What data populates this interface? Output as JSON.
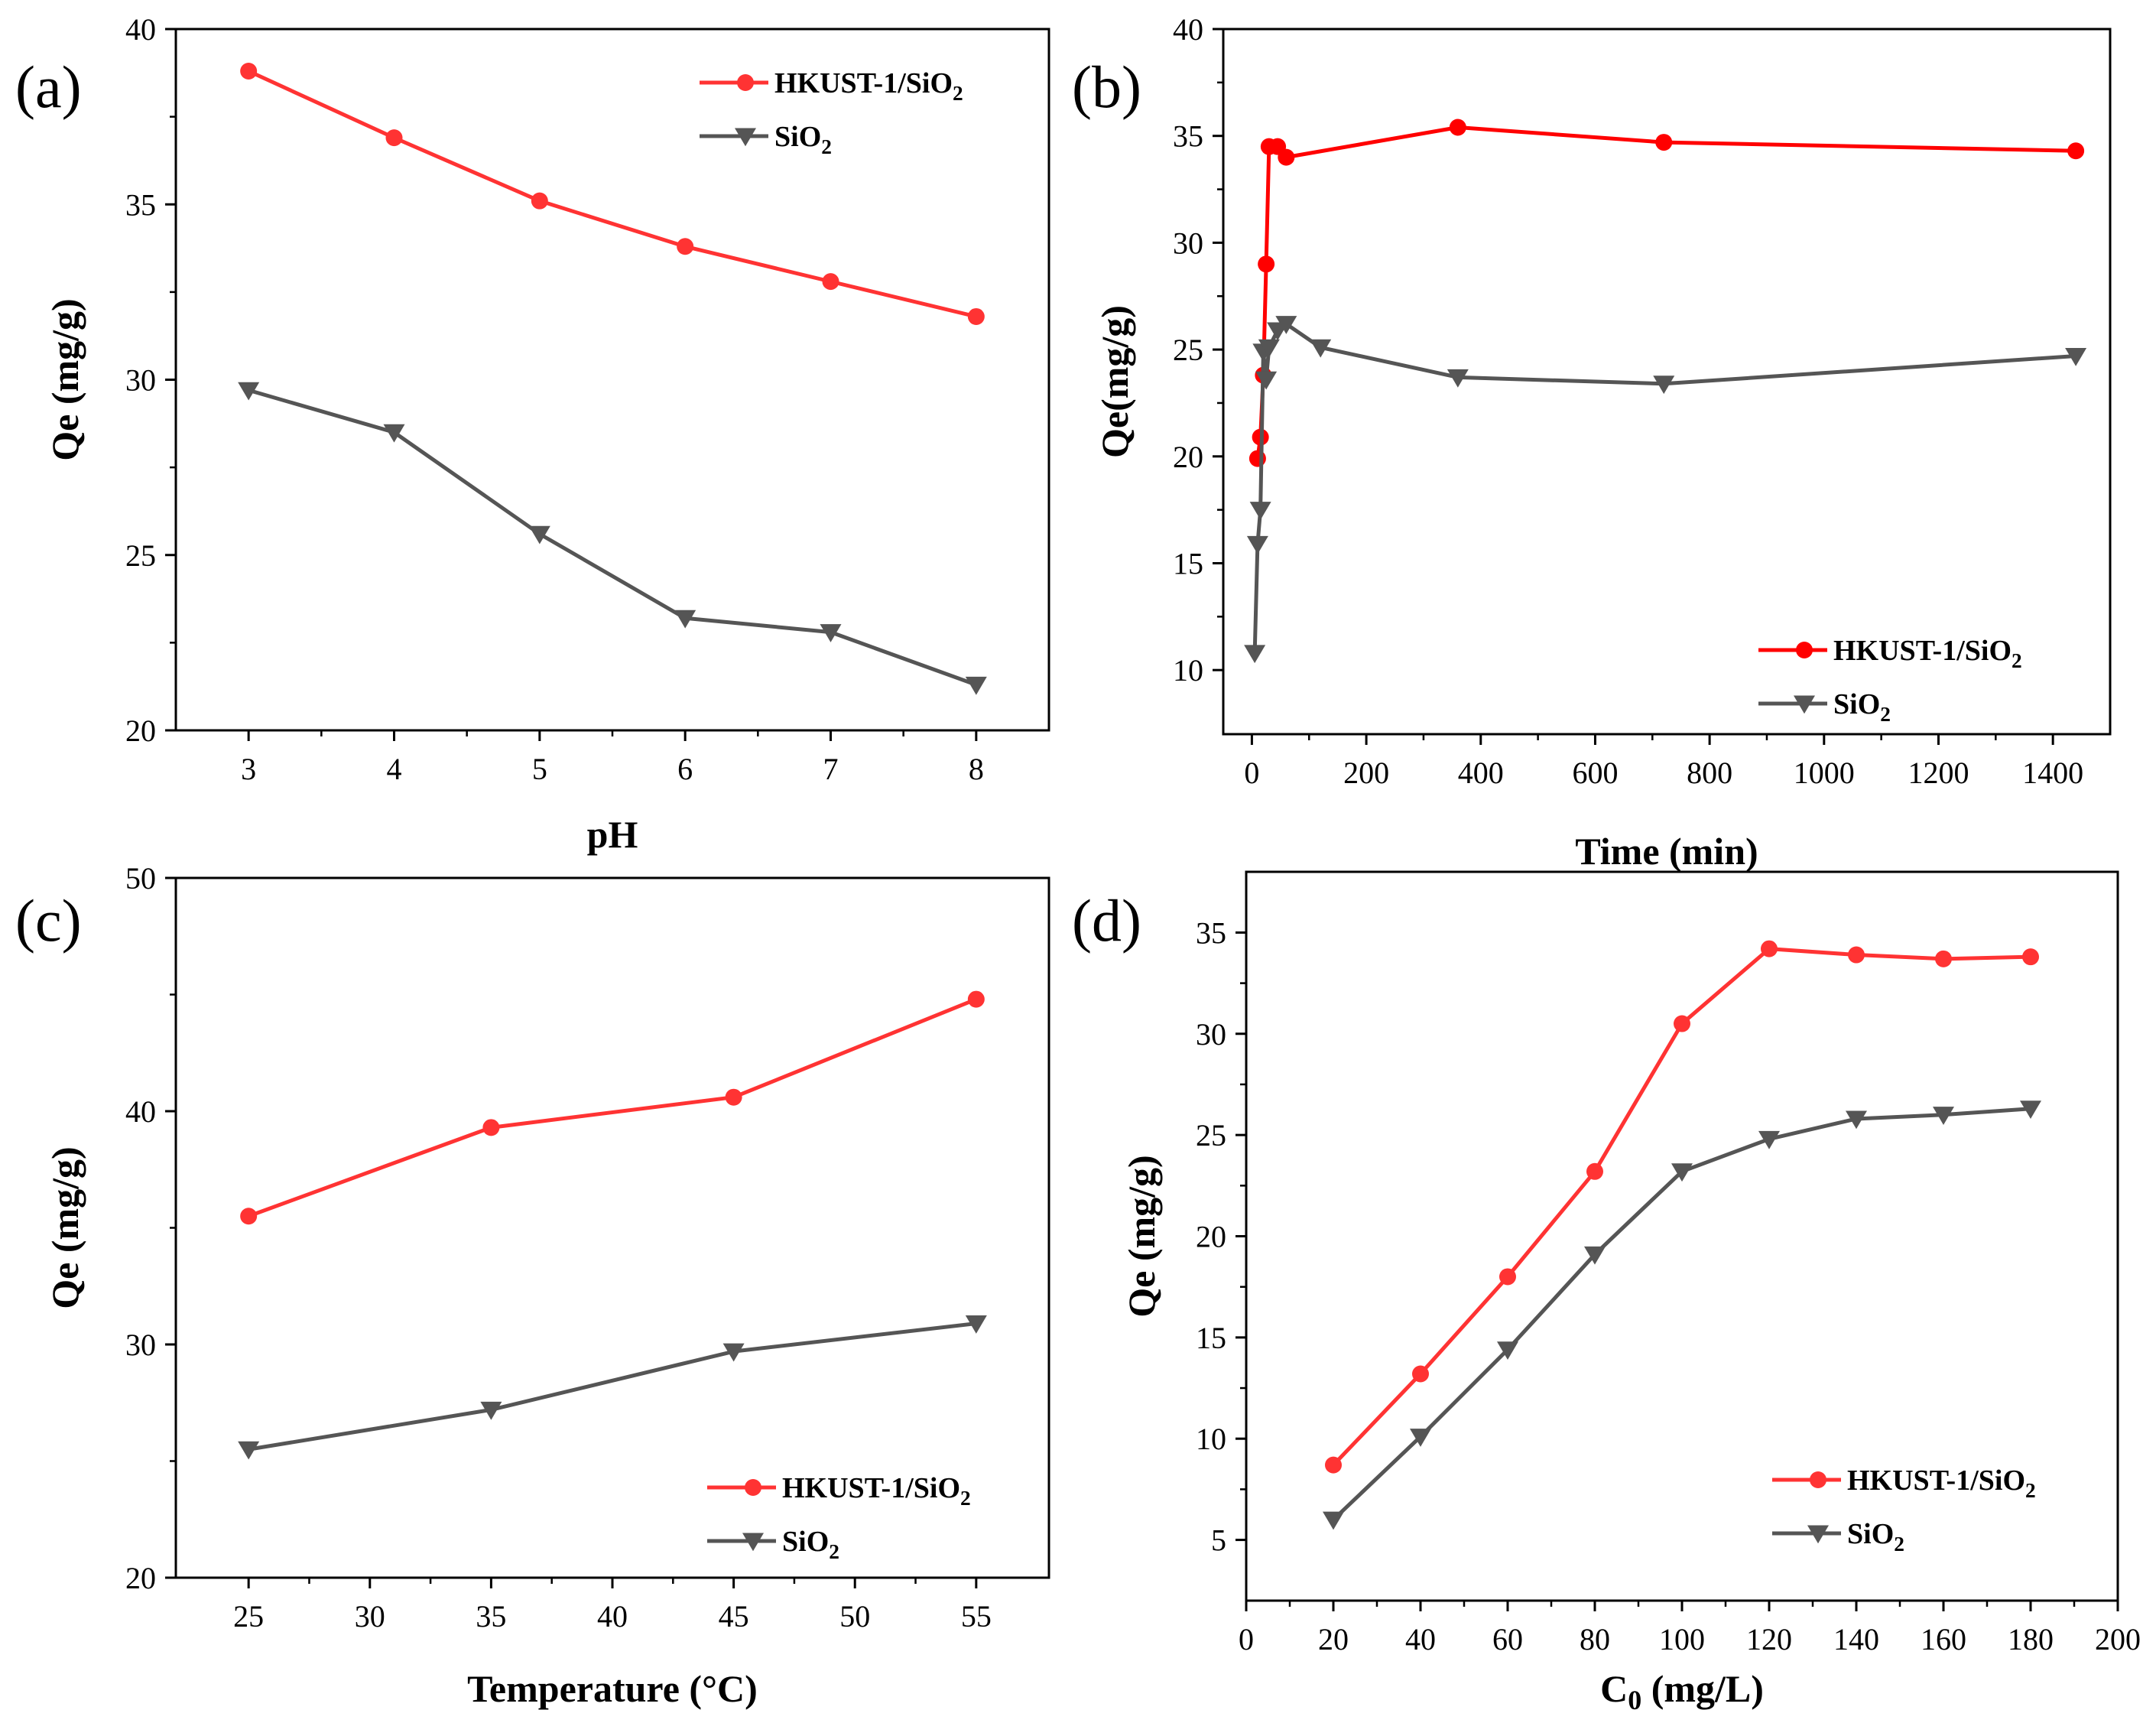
{
  "chart_data": [
    {
      "panel_label": "(a)",
      "type": "line",
      "xlabel": "pH",
      "ylabel": "Qe  (mg/g)",
      "xlim": [
        2.5,
        8.5
      ],
      "ylim": [
        20,
        40
      ],
      "xticks": [
        3,
        4,
        5,
        6,
        7,
        8
      ],
      "yticks": [
        20,
        25,
        30,
        35,
        40
      ],
      "x_tick_labels": [
        "3",
        "4",
        "5",
        "6",
        "7",
        "8"
      ],
      "y_tick_labels": [
        "20",
        "25",
        "30",
        "35",
        "40"
      ],
      "legend_position": "top-right",
      "series": [
        {
          "name": "HKUST-1/SiO2",
          "legend_main": "HKUST-1/SiO",
          "legend_sub": "2",
          "color": "#ff3333",
          "marker": "circle",
          "x": [
            3,
            4,
            5,
            6,
            7,
            8
          ],
          "y": [
            38.8,
            36.9,
            35.1,
            33.8,
            32.8,
            31.8
          ]
        },
        {
          "name": "SiO2",
          "legend_main": "SiO",
          "legend_sub": "2",
          "color": "#555555",
          "marker": "triangle-down",
          "x": [
            3,
            4,
            5,
            6,
            7,
            8
          ],
          "y": [
            29.7,
            28.5,
            25.6,
            23.2,
            22.8,
            21.3
          ]
        }
      ]
    },
    {
      "panel_label": "(b)",
      "type": "line",
      "xlabel": "Time (min)",
      "ylabel": "Qe(mg/g)",
      "xlim": [
        -50,
        1500
      ],
      "ylim": [
        7,
        40
      ],
      "xticks": [
        0,
        200,
        400,
        600,
        800,
        1000,
        1200,
        1400
      ],
      "yticks": [
        10,
        15,
        20,
        25,
        30,
        35,
        40
      ],
      "x_tick_labels": [
        "0",
        "200",
        "400",
        "600",
        "800",
        "1000",
        "1200",
        "1400"
      ],
      "y_tick_labels": [
        "10",
        "15",
        "20",
        "25",
        "30",
        "35",
        "40"
      ],
      "legend_position": "bottom-right",
      "series": [
        {
          "name": "HKUST-1/SiO2",
          "legend_main": "HKUST-1/SiO",
          "legend_sub": "2",
          "color": "#ff0000",
          "marker": "circle",
          "x": [
            10,
            15,
            20,
            25,
            30,
            45,
            60,
            360,
            720,
            1440
          ],
          "y": [
            19.9,
            20.9,
            23.8,
            29.0,
            34.5,
            34.5,
            34.0,
            35.4,
            34.7,
            34.3
          ]
        },
        {
          "name": "SiO2",
          "legend_main": "SiO",
          "legend_sub": "2",
          "color": "#555555",
          "marker": "triangle-down",
          "x": [
            5,
            10,
            15,
            20,
            25,
            30,
            45,
            60,
            120,
            360,
            720,
            1440
          ],
          "y": [
            10.8,
            15.9,
            17.5,
            24.9,
            23.6,
            25.1,
            25.9,
            26.2,
            25.1,
            23.7,
            23.4,
            24.7
          ]
        }
      ]
    },
    {
      "panel_label": "(c)",
      "type": "line",
      "xlabel": "Temperature (°C)",
      "ylabel": "Qe  (mg/g)",
      "xlim": [
        22,
        58
      ],
      "ylim": [
        20,
        50
      ],
      "xticks": [
        25,
        30,
        35,
        40,
        45,
        50,
        55
      ],
      "yticks": [
        20,
        30,
        40,
        50
      ],
      "x_tick_labels": [
        "25",
        "30",
        "35",
        "40",
        "45",
        "50",
        "55"
      ],
      "y_tick_labels": [
        "20",
        "30",
        "40",
        "50"
      ],
      "legend_position": "bottom-right",
      "series": [
        {
          "name": "HKUST-1/SiO2",
          "legend_main": "HKUST-1/SiO",
          "legend_sub": "2",
          "color": "#ff3333",
          "marker": "circle",
          "x": [
            25,
            35,
            45,
            55
          ],
          "y": [
            35.5,
            39.3,
            40.6,
            44.8
          ]
        },
        {
          "name": "SiO2",
          "legend_main": "SiO",
          "legend_sub": "2",
          "color": "#555555",
          "marker": "triangle-down",
          "x": [
            25,
            35,
            45,
            55
          ],
          "y": [
            25.5,
            27.2,
            29.7,
            30.9
          ]
        }
      ]
    },
    {
      "panel_label": "(d)",
      "type": "line",
      "xlabel": "C0 (mg/L)",
      "xlabel_main": "C",
      "xlabel_sub": "0",
      "xlabel_rest": " (mg/L)",
      "ylabel": "Qe  (mg/g)",
      "xlim": [
        0,
        200
      ],
      "ylim": [
        2,
        38
      ],
      "xticks": [
        0,
        20,
        40,
        60,
        80,
        100,
        120,
        140,
        160,
        180,
        200
      ],
      "yticks": [
        5,
        10,
        15,
        20,
        25,
        30,
        35
      ],
      "x_tick_labels": [
        "0",
        "20",
        "40",
        "60",
        "80",
        "100",
        "120",
        "140",
        "160",
        "180",
        "200"
      ],
      "y_tick_labels": [
        "5",
        "10",
        "15",
        "20",
        "25",
        "30",
        "35"
      ],
      "legend_position": "bottom-right",
      "series": [
        {
          "name": "HKUST-1/SiO2",
          "legend_main": "HKUST-1/SiO",
          "legend_sub": "2",
          "color": "#ff3333",
          "marker": "circle",
          "x": [
            20,
            40,
            60,
            80,
            100,
            120,
            140,
            160,
            180
          ],
          "y": [
            8.7,
            13.2,
            18.0,
            23.2,
            30.5,
            34.2,
            33.9,
            33.7,
            33.8
          ]
        },
        {
          "name": "SiO2",
          "legend_main": "SiO",
          "legend_sub": "2",
          "color": "#555555",
          "marker": "triangle-down",
          "x": [
            20,
            40,
            60,
            80,
            100,
            120,
            140,
            160,
            180
          ],
          "y": [
            6.0,
            10.1,
            14.4,
            19.1,
            23.2,
            24.8,
            25.8,
            26.0,
            26.3
          ]
        }
      ]
    }
  ]
}
